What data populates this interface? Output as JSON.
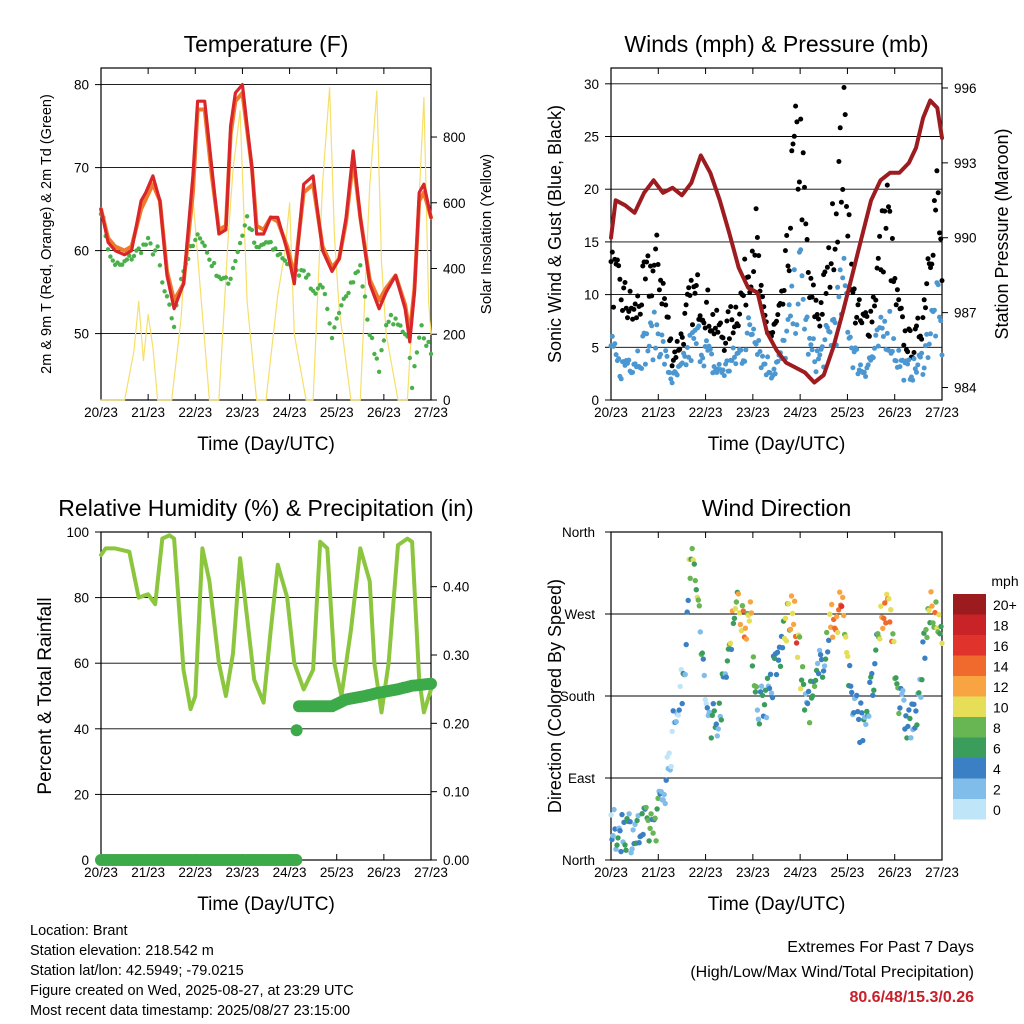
{
  "x_ticks": [
    "20/23",
    "21/23",
    "22/23",
    "23/23",
    "24/23",
    "25/23",
    "26/23",
    "27/23"
  ],
  "x_label": "Time (Day/UTC)",
  "info": {
    "location": "Location: Brant",
    "elevation": "Station elevation: 218.542 m",
    "latlon": "Station lat/lon: 42.5949; -79.0215",
    "created": "Figure created on Wed, 2025-08-27, at 23:29 UTC",
    "recent": "Most recent data timestamp: 2025/08/27 23:15:00"
  },
  "extremes": {
    "title": "Extremes For Past 7 Days",
    "subtitle": "(High/Low/Max Wind/Total Precipitation)",
    "values": "80.6/48/15.3/0.26"
  },
  "colors": {
    "t2m": "#d9262a",
    "t9m": "#f07a2a",
    "td": "#4ab04a",
    "solar": "#f6df6a",
    "wind": "#4d97d1",
    "gust": "#000000",
    "pressure": "#9c1c20",
    "rh": "#8cc63f",
    "precip": "#3daa4a"
  },
  "chart_data": [
    {
      "type": "line",
      "title": "Temperature (F)",
      "ylabel": "2m & 9m T (Red, Orange) & 2m Td (Green)",
      "y2label": "Solar Insolation (Yellow)",
      "xlabel": "Time (Day/UTC)",
      "ylim": [
        42,
        82
      ],
      "y2lim": [
        0,
        1010
      ],
      "yticks": [
        50,
        60,
        70,
        80
      ],
      "y2ticks": [
        0,
        200,
        400,
        600,
        800
      ],
      "grid": true,
      "series": [
        {
          "key": "t2m",
          "x": [
            0,
            0.15,
            0.3,
            0.5,
            0.65,
            0.85,
            0.95,
            1.1,
            1.25,
            1.4,
            1.55,
            1.75,
            1.95,
            2.05,
            2.2,
            2.35,
            2.5,
            2.65,
            2.75,
            2.85,
            3.0,
            3.2,
            3.3,
            3.45,
            3.6,
            3.75,
            3.95,
            4.1,
            4.3,
            4.5,
            4.7,
            4.9,
            5.05,
            5.2,
            5.35,
            5.5,
            5.7,
            5.9,
            6.05,
            6.25,
            6.45,
            6.55,
            6.65,
            6.75,
            6.85,
            7.0
          ],
          "y": [
            65,
            61,
            60,
            59.5,
            60,
            66,
            67,
            69,
            66,
            57,
            53,
            56,
            69,
            78,
            78,
            70,
            62,
            62.5,
            75,
            79,
            80,
            70,
            62,
            62,
            64,
            64,
            60,
            56,
            68,
            69,
            60,
            57.5,
            59,
            64,
            72,
            64,
            56,
            53,
            55,
            57,
            53,
            49,
            55,
            67,
            68,
            64
          ]
        },
        {
          "key": "t9m",
          "x": [
            0,
            0.15,
            0.3,
            0.5,
            0.65,
            0.85,
            1.1,
            1.25,
            1.4,
            1.55,
            1.75,
            1.95,
            2.05,
            2.2,
            2.35,
            2.5,
            2.65,
            2.75,
            2.85,
            3.0,
            3.2,
            3.3,
            3.45,
            3.6,
            3.75,
            3.95,
            4.1,
            4.3,
            4.5,
            4.7,
            4.9,
            5.05,
            5.2,
            5.35,
            5.5,
            5.7,
            5.9,
            6.05,
            6.25,
            6.45,
            6.55,
            6.65,
            6.75,
            6.85,
            7.0
          ],
          "y": [
            65,
            61.5,
            60.5,
            60,
            60.5,
            65,
            68,
            66,
            57.5,
            54,
            56,
            67,
            77,
            77,
            69,
            62.5,
            63,
            74,
            78,
            79,
            70,
            63,
            62.5,
            64,
            63.5,
            60.5,
            57,
            67,
            68,
            60.5,
            58,
            59,
            63.5,
            71,
            64,
            56.5,
            54,
            55.5,
            57,
            53.5,
            50,
            55.5,
            66,
            67,
            64
          ]
        },
        {
          "key": "td",
          "x": [
            0,
            0.2,
            0.4,
            0.6,
            0.8,
            1.0,
            1.1,
            1.2,
            1.3,
            1.4,
            1.55,
            1.7,
            1.9,
            2.1,
            2.3,
            2.5,
            2.7,
            2.9,
            3.1,
            3.3,
            3.5,
            3.7,
            3.9,
            4.1,
            4.3,
            4.5,
            4.7,
            4.9,
            5.1,
            5.3,
            5.5,
            5.7,
            5.9,
            6.1,
            6.3,
            6.5,
            6.6,
            6.8,
            6.9,
            7.0
          ],
          "y": [
            65,
            59,
            58,
            59,
            60,
            61,
            60,
            60,
            56,
            54,
            51,
            57,
            60,
            62,
            59,
            57,
            56,
            60,
            64,
            60,
            61,
            60,
            59,
            57,
            58,
            55,
            56,
            49,
            54,
            56,
            58,
            50,
            46,
            52,
            51,
            50,
            44,
            51,
            49,
            48
          ]
        },
        {
          "key": "solar",
          "x": [
            0,
            0.5,
            0.7,
            0.8,
            0.9,
            1.0,
            1.1,
            1.2,
            1.5,
            1.7,
            1.8,
            1.95,
            2.1,
            2.3,
            2.5,
            2.7,
            2.8,
            2.95,
            3.1,
            3.3,
            3.5,
            3.75,
            3.9,
            4.0,
            4.1,
            4.35,
            4.5,
            4.7,
            4.85,
            4.95,
            5.05,
            5.3,
            5.5,
            5.7,
            5.85,
            5.95,
            6.05,
            6.3,
            6.5,
            6.75,
            6.85,
            6.95,
            7.0
          ],
          "y": [
            0,
            0,
            150,
            300,
            120,
            260,
            160,
            0,
            0,
            250,
            480,
            620,
            350,
            0,
            0,
            500,
            700,
            880,
            300,
            0,
            0,
            320,
            450,
            600,
            200,
            0,
            0,
            660,
            950,
            500,
            280,
            0,
            0,
            650,
            940,
            420,
            200,
            0,
            0,
            620,
            920,
            300,
            200
          ]
        }
      ]
    },
    {
      "type": "scatter",
      "title": "Winds (mph) & Pressure (mb)",
      "ylabel": "Sonic Wind & Gust (Blue, Black)",
      "y2label": "Station Pressure (Maroon)",
      "xlabel": "Time (Day/UTC)",
      "ylim": [
        0,
        31.5
      ],
      "y2lim": [
        983.5,
        996.8
      ],
      "yticks": [
        0,
        5,
        10,
        15,
        20,
        25,
        30
      ],
      "y2ticks": [
        984,
        987,
        990,
        993,
        996
      ],
      "grid": true,
      "series": [
        {
          "key": "gust",
          "x": [
            0,
            0.2,
            0.35,
            0.5,
            0.65,
            0.85,
            1.0,
            1.15,
            1.3,
            1.5,
            1.65,
            1.85,
            2.0,
            2.2,
            2.4,
            2.6,
            2.8,
            2.95,
            3.05,
            3.2,
            3.4,
            3.6,
            3.75,
            3.85,
            4.0,
            4.2,
            4.4,
            4.6,
            4.8,
            4.95,
            5.1,
            5.3,
            5.5,
            5.7,
            5.85,
            6.0,
            6.2,
            6.4,
            6.6,
            6.75,
            6.9,
            7.0
          ],
          "y": [
            12,
            10,
            9,
            8,
            10,
            12,
            13,
            9,
            4,
            6,
            9,
            10,
            9,
            7,
            6,
            8,
            10,
            14,
            16,
            8,
            6,
            8,
            14,
            22,
            24,
            10,
            8,
            12,
            20,
            25,
            10,
            7,
            8,
            14,
            18,
            10,
            6,
            5,
            8,
            16,
            19,
            12
          ]
        },
        {
          "key": "wind",
          "x": [
            0,
            0.2,
            0.35,
            0.5,
            0.65,
            0.85,
            1.0,
            1.15,
            1.3,
            1.5,
            1.65,
            1.85,
            2.0,
            2.2,
            2.4,
            2.6,
            2.8,
            2.95,
            3.05,
            3.2,
            3.4,
            3.6,
            3.75,
            3.85,
            4.0,
            4.2,
            4.4,
            4.6,
            4.8,
            4.95,
            5.1,
            5.3,
            5.5,
            5.7,
            5.85,
            6.0,
            6.2,
            6.4,
            6.6,
            6.75,
            6.9,
            7.0
          ],
          "y": [
            5,
            3,
            4,
            4,
            5,
            6,
            7,
            4,
            2,
            3,
            5,
            6,
            5,
            3,
            3,
            4,
            5,
            7,
            8,
            4,
            3,
            4,
            7,
            9,
            12,
            5,
            4,
            6,
            9,
            11,
            5,
            3,
            4,
            6,
            8,
            5,
            3,
            3,
            4,
            7,
            9,
            6
          ]
        },
        {
          "key": "pressure",
          "x": [
            0,
            0.1,
            0.3,
            0.5,
            0.7,
            0.9,
            1.1,
            1.3,
            1.5,
            1.7,
            1.9,
            2.1,
            2.3,
            2.5,
            2.7,
            2.9,
            3.1,
            3.3,
            3.5,
            3.7,
            3.9,
            4.1,
            4.3,
            4.5,
            4.7,
            4.9,
            5.1,
            5.3,
            5.5,
            5.7,
            5.9,
            6.1,
            6.3,
            6.45,
            6.6,
            6.75,
            6.9,
            7.0
          ],
          "y": [
            990,
            991.5,
            991.3,
            991,
            991.8,
            992.3,
            991.8,
            992,
            991.7,
            992.2,
            993.3,
            992.6,
            991.5,
            990.2,
            988.8,
            988,
            987.8,
            986.2,
            985.5,
            985,
            984.8,
            984.6,
            984.2,
            984.5,
            985.6,
            987,
            988.5,
            990,
            991.5,
            992.3,
            992.6,
            992.6,
            993,
            993.6,
            994.8,
            995.5,
            995.2,
            994
          ]
        }
      ]
    },
    {
      "type": "line",
      "title": "Relative Humidity (%) & Precipitation (in)",
      "ylabel": "Percent & Total Rainfall",
      "xlabel": "Time (Day/UTC)",
      "ylim": [
        0,
        100
      ],
      "y2lim": [
        0,
        0.48
      ],
      "yticks": [
        0,
        20,
        40,
        60,
        80,
        100
      ],
      "y2ticks": [
        "0.00",
        "0.10",
        "0.20",
        "0.30",
        "0.40"
      ],
      "grid": true,
      "series": [
        {
          "key": "rh",
          "x": [
            0,
            0.1,
            0.3,
            0.6,
            0.8,
            1.0,
            1.15,
            1.3,
            1.45,
            1.55,
            1.75,
            1.9,
            2.0,
            2.15,
            2.3,
            2.5,
            2.65,
            2.8,
            2.95,
            3.05,
            3.25,
            3.45,
            3.6,
            3.75,
            3.95,
            4.1,
            4.3,
            4.5,
            4.65,
            4.8,
            4.95,
            5.1,
            5.3,
            5.5,
            5.7,
            5.8,
            5.95,
            6.1,
            6.3,
            6.5,
            6.6,
            6.75,
            6.85,
            7.0
          ],
          "y": [
            93,
            95,
            95,
            94,
            80,
            81,
            78,
            98,
            99,
            98,
            58,
            46,
            50,
            95,
            85,
            60,
            50,
            63,
            92,
            80,
            55,
            48,
            70,
            90,
            80,
            60,
            52,
            58,
            97,
            95,
            60,
            50,
            70,
            95,
            85,
            60,
            45,
            60,
            96,
            98,
            97,
            55,
            45,
            52
          ]
        },
        {
          "key": "precip",
          "x": [
            0,
            4.1,
            4.15,
            4.2,
            4.9,
            5.2,
            5.6,
            5.9,
            6.3,
            6.6,
            7.0
          ],
          "y": [
            0,
            0,
            0.19,
            0.225,
            0.225,
            0.235,
            0.24,
            0.245,
            0.25,
            0.255,
            0.258
          ]
        }
      ]
    },
    {
      "type": "scatter",
      "title": "Wind Direction",
      "ylabel": "Direction (Colored By Speed)",
      "xlabel": "Time (Day/UTC)",
      "yticks": [
        "North",
        "East",
        "South",
        "West",
        "North"
      ],
      "ylim": [
        0,
        360
      ],
      "colorbar": {
        "units": "mph",
        "labels": [
          "20+",
          "18",
          "16",
          "14",
          "12",
          "10",
          "8",
          "6",
          "4",
          "2",
          "0"
        ],
        "colors": [
          "#9b1b1f",
          "#c92327",
          "#e0332b",
          "#f06a2e",
          "#f9a443",
          "#e6de57",
          "#67b553",
          "#3a9d5c",
          "#3b7fc4",
          "#80bdea",
          "#bfe5f9"
        ]
      },
      "series": [
        {
          "key": "dir",
          "x": [
            0,
            0.3,
            0.6,
            0.9,
            1.0,
            1.2,
            1.4,
            1.55,
            1.65,
            1.8,
            2.0,
            2.2,
            2.4,
            2.6,
            2.8,
            2.95,
            3.1,
            3.3,
            3.55,
            3.75,
            3.9,
            4.1,
            4.3,
            4.5,
            4.75,
            4.9,
            5.1,
            5.3,
            5.5,
            5.75,
            5.9,
            6.1,
            6.3,
            6.5,
            6.7,
            6.85,
            7.0
          ],
          "y": [
            30,
            35,
            30,
            40,
            50,
            100,
            170,
            200,
            330,
            310,
            170,
            150,
            190,
            280,
            270,
            260,
            170,
            180,
            220,
            270,
            260,
            170,
            180,
            230,
            270,
            280,
            170,
            150,
            180,
            270,
            280,
            170,
            150,
            160,
            280,
            260,
            250
          ],
          "speed": [
            4,
            5,
            5,
            8,
            6,
            3,
            3,
            4,
            8,
            9,
            4,
            5,
            5,
            10,
            12,
            11,
            5,
            5,
            4,
            12,
            15,
            5,
            6,
            5,
            13,
            14,
            5,
            5,
            4,
            12,
            14,
            5,
            4,
            4,
            10,
            12,
            9
          ]
        }
      ]
    }
  ]
}
